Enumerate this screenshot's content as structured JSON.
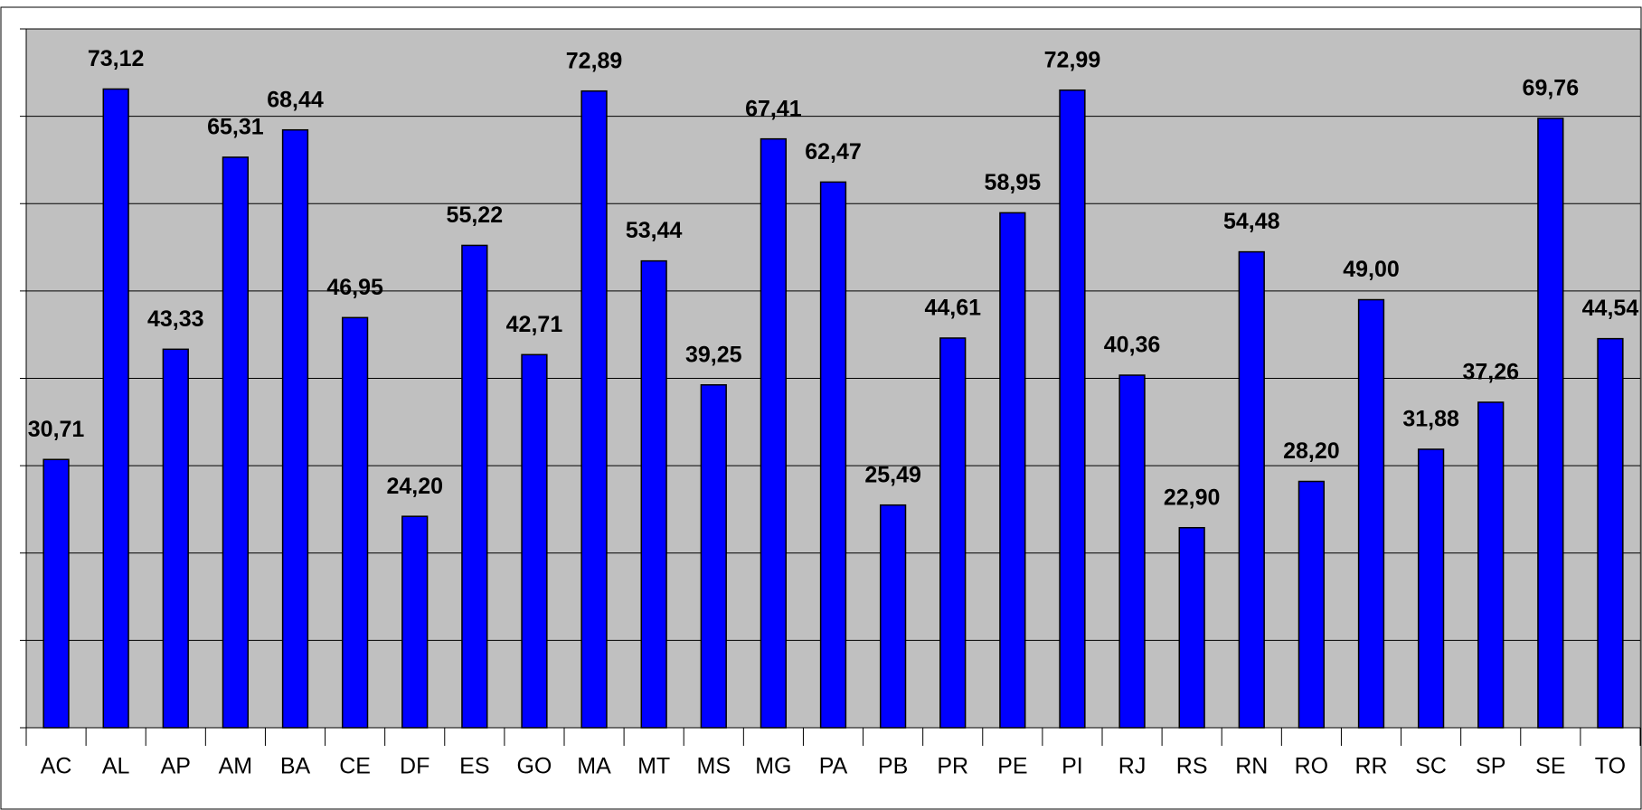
{
  "chart_data": {
    "type": "bar",
    "categories": [
      "AC",
      "AL",
      "AP",
      "AM",
      "BA",
      "CE",
      "DF",
      "ES",
      "GO",
      "MA",
      "MT",
      "MS",
      "MG",
      "PA",
      "PB",
      "PR",
      "PE",
      "PI",
      "RJ",
      "RS",
      "RN",
      "RO",
      "RR",
      "SC",
      "SP",
      "SE",
      "TO"
    ],
    "values": [
      30.71,
      73.12,
      43.33,
      65.31,
      68.44,
      46.95,
      24.2,
      55.22,
      42.71,
      72.89,
      53.44,
      39.25,
      67.41,
      62.47,
      25.49,
      44.61,
      58.95,
      72.99,
      40.36,
      22.9,
      54.48,
      28.2,
      49.0,
      31.88,
      37.26,
      69.76,
      44.54
    ],
    "value_labels": [
      "30,71",
      "73,12",
      "43,33",
      "65,31",
      "68,44",
      "46,95",
      "24,20",
      "55,22",
      "42,71",
      "72,89",
      "53,44",
      "39,25",
      "67,41",
      "62,47",
      "25,49",
      "44,61",
      "58,95",
      "72,99",
      "40,36",
      "22,90",
      "54,48",
      "28,20",
      "49,00",
      "31,88",
      "37,26",
      "69,76",
      "44,54"
    ],
    "color": "#0000ff",
    "ylim": [
      0,
      80
    ],
    "yticks": [
      0,
      10,
      20,
      30,
      40,
      50,
      60,
      70,
      80
    ],
    "grid": true
  }
}
